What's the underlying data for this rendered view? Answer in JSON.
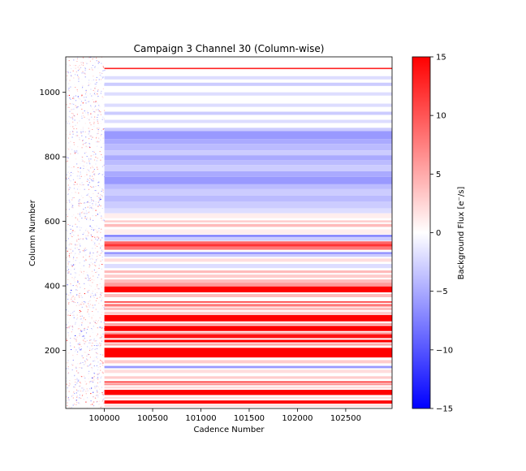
{
  "chart_data": {
    "type": "heatmap",
    "title": "Campaign 3 Channel 30 (Column-wise)",
    "xlabel": "Cadence Number",
    "ylabel": "Column Number",
    "xlim": [
      99600,
      102980
    ],
    "ylim": [
      20,
      1110
    ],
    "xticks": [
      100000,
      100500,
      101000,
      101500,
      102000,
      102500
    ],
    "yticks": [
      200,
      400,
      600,
      800,
      1000
    ],
    "colorbar": {
      "label": "Background Flux [e⁻/s]",
      "range": [
        -15,
        15
      ],
      "ticks": [
        -15,
        -10,
        -5,
        0,
        5,
        10,
        15
      ],
      "colors": [
        "#0000ff",
        "#ffffff",
        "#ff0000"
      ]
    },
    "noisy_region_end": 100000,
    "bands": [
      {
        "y0": 1072,
        "y1": 1076,
        "value": 13
      },
      {
        "y0": 1040,
        "y1": 1050,
        "value": -2
      },
      {
        "y0": 1020,
        "y1": 1030,
        "value": -3
      },
      {
        "y0": 990,
        "y1": 1000,
        "value": -2
      },
      {
        "y0": 955,
        "y1": 965,
        "value": -2
      },
      {
        "y0": 930,
        "y1": 940,
        "value": -3
      },
      {
        "y0": 905,
        "y1": 915,
        "value": -2
      },
      {
        "y0": 880,
        "y1": 890,
        "value": -3
      },
      {
        "y0": 855,
        "y1": 880,
        "value": -6
      },
      {
        "y0": 840,
        "y1": 855,
        "value": -5
      },
      {
        "y0": 820,
        "y1": 840,
        "value": -4
      },
      {
        "y0": 805,
        "y1": 820,
        "value": -3
      },
      {
        "y0": 790,
        "y1": 805,
        "value": -5
      },
      {
        "y0": 775,
        "y1": 790,
        "value": -4
      },
      {
        "y0": 755,
        "y1": 775,
        "value": -3
      },
      {
        "y0": 738,
        "y1": 755,
        "value": -5
      },
      {
        "y0": 715,
        "y1": 738,
        "value": -6
      },
      {
        "y0": 700,
        "y1": 715,
        "value": -4
      },
      {
        "y0": 680,
        "y1": 700,
        "value": -3
      },
      {
        "y0": 660,
        "y1": 680,
        "value": -4
      },
      {
        "y0": 640,
        "y1": 660,
        "value": -3
      },
      {
        "y0": 625,
        "y1": 640,
        "value": -2
      },
      {
        "y0": 610,
        "y1": 625,
        "value": 1
      },
      {
        "y0": 597,
        "y1": 603,
        "value": 3
      },
      {
        "y0": 583,
        "y1": 592,
        "value": 4
      },
      {
        "y0": 560,
        "y1": 575,
        "value": 1
      },
      {
        "y0": 552,
        "y1": 558,
        "value": -8
      },
      {
        "y0": 540,
        "y1": 552,
        "value": -3
      },
      {
        "y0": 530,
        "y1": 538,
        "value": 9
      },
      {
        "y0": 522,
        "y1": 530,
        "value": 12
      },
      {
        "y0": 512,
        "y1": 522,
        "value": 8
      },
      {
        "y0": 498,
        "y1": 505,
        "value": -6
      },
      {
        "y0": 490,
        "y1": 498,
        "value": -3
      },
      {
        "y0": 475,
        "y1": 485,
        "value": 2
      },
      {
        "y0": 455,
        "y1": 468,
        "value": -2
      },
      {
        "y0": 440,
        "y1": 448,
        "value": 4
      },
      {
        "y0": 425,
        "y1": 435,
        "value": 3
      },
      {
        "y0": 410,
        "y1": 420,
        "value": 4
      },
      {
        "y0": 398,
        "y1": 410,
        "value": 6
      },
      {
        "y0": 380,
        "y1": 398,
        "value": 15
      },
      {
        "y0": 365,
        "y1": 375,
        "value": 4
      },
      {
        "y0": 348,
        "y1": 352,
        "value": 12
      },
      {
        "y0": 336,
        "y1": 344,
        "value": 8
      },
      {
        "y0": 325,
        "y1": 333,
        "value": 4
      },
      {
        "y0": 312,
        "y1": 320,
        "value": 3
      },
      {
        "y0": 290,
        "y1": 310,
        "value": 15
      },
      {
        "y0": 278,
        "y1": 284,
        "value": 6
      },
      {
        "y0": 260,
        "y1": 276,
        "value": 15
      },
      {
        "y0": 250,
        "y1": 256,
        "value": 6
      },
      {
        "y0": 238,
        "y1": 250,
        "value": 14
      },
      {
        "y0": 225,
        "y1": 233,
        "value": 15
      },
      {
        "y0": 215,
        "y1": 222,
        "value": 5
      },
      {
        "y0": 178,
        "y1": 208,
        "value": 15
      },
      {
        "y0": 160,
        "y1": 170,
        "value": 3
      },
      {
        "y0": 145,
        "y1": 152,
        "value": -6
      },
      {
        "y0": 130,
        "y1": 140,
        "value": 2
      },
      {
        "y0": 112,
        "y1": 120,
        "value": 3
      },
      {
        "y0": 100,
        "y1": 104,
        "value": 13
      },
      {
        "y0": 92,
        "y1": 98,
        "value": 6
      },
      {
        "y0": 82,
        "y1": 88,
        "value": 2
      },
      {
        "y0": 62,
        "y1": 78,
        "value": 15
      },
      {
        "y0": 50,
        "y1": 56,
        "value": 2
      },
      {
        "y0": 35,
        "y1": 45,
        "value": 15
      },
      {
        "y0": 25,
        "y1": 32,
        "value": 2
      }
    ]
  }
}
